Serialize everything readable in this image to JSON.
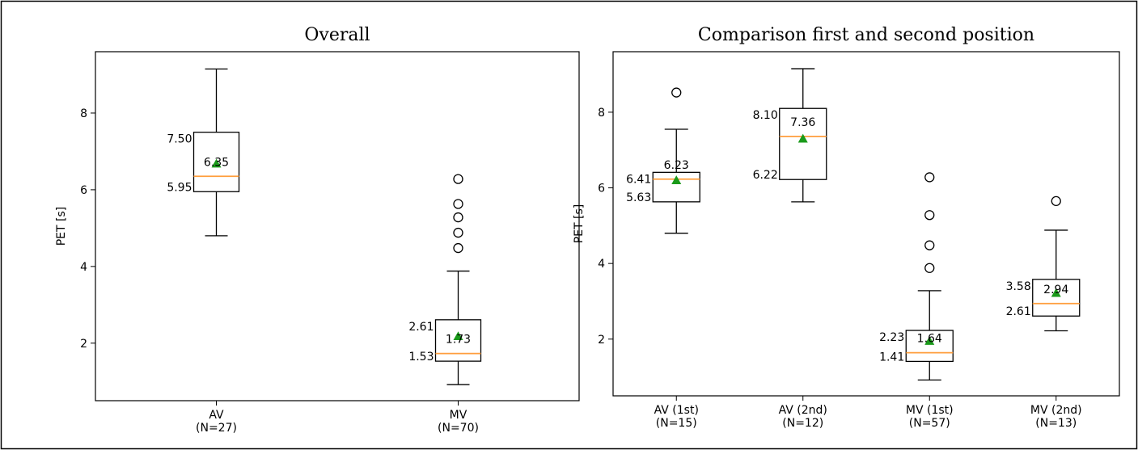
{
  "chart_data": [
    {
      "type": "box",
      "title": "Overall",
      "ylabel": "PET [s]",
      "ylim": [
        0.5,
        9.6
      ],
      "yticks": [
        2,
        4,
        6,
        8
      ],
      "categories": [
        {
          "label": "AV",
          "sublabel": "(N=27)"
        },
        {
          "label": "MV",
          "sublabel": "(N=70)"
        }
      ],
      "boxes": [
        {
          "whisker_low": 4.8,
          "q1": 5.95,
          "median": 6.35,
          "q3": 7.5,
          "whisker_high": 9.15,
          "mean": 6.68,
          "outliers": [],
          "labels": {
            "q3": "7.50",
            "median": "6.35",
            "q1": "5.95"
          }
        },
        {
          "whisker_low": 0.92,
          "q1": 1.53,
          "median": 1.73,
          "q3": 2.61,
          "whisker_high": 3.88,
          "mean": 2.18,
          "outliers": [
            4.48,
            4.88,
            5.28,
            5.63,
            6.28
          ],
          "labels": {
            "q3": "2.61",
            "median": "1.73",
            "q1": "1.53"
          }
        }
      ]
    },
    {
      "type": "box",
      "title": "Comparison first and second position",
      "ylabel": "PET [s]",
      "ylim": [
        0.5,
        9.6
      ],
      "yticks": [
        2,
        4,
        6,
        8
      ],
      "categories": [
        {
          "label": "AV (1st)",
          "sublabel": "(N=15)"
        },
        {
          "label": "AV (2nd)",
          "sublabel": "(N=12)"
        },
        {
          "label": "MV (1st)",
          "sublabel": "(N=57)"
        },
        {
          "label": "MV (2nd)",
          "sublabel": "(N=13)"
        }
      ],
      "boxes": [
        {
          "whisker_low": 4.8,
          "q1": 5.63,
          "median": 6.23,
          "q3": 6.41,
          "whisker_high": 7.55,
          "mean": 6.2,
          "outliers": [
            8.52
          ],
          "labels": {
            "q3": "6.41",
            "median": "6.23",
            "q1": "5.63"
          }
        },
        {
          "whisker_low": 5.63,
          "q1": 6.22,
          "median": 7.36,
          "q3": 8.1,
          "whisker_high": 9.15,
          "mean": 7.3,
          "outliers": [],
          "labels": {
            "q3": "8.10",
            "median": "7.36",
            "q1": "6.22"
          }
        },
        {
          "whisker_low": 0.92,
          "q1": 1.41,
          "median": 1.64,
          "q3": 2.23,
          "whisker_high": 3.28,
          "mean": 1.95,
          "outliers": [
            3.88,
            4.48,
            5.28,
            6.28
          ],
          "labels": {
            "q3": "2.23",
            "median": "1.64",
            "q1": "1.41"
          }
        },
        {
          "whisker_low": 2.22,
          "q1": 2.61,
          "median": 2.94,
          "q3": 3.58,
          "whisker_high": 4.88,
          "mean": 3.22,
          "outliers": [
            5.65
          ],
          "labels": {
            "q3": "3.58",
            "median": "2.94",
            "q1": "2.61"
          }
        }
      ]
    }
  ]
}
